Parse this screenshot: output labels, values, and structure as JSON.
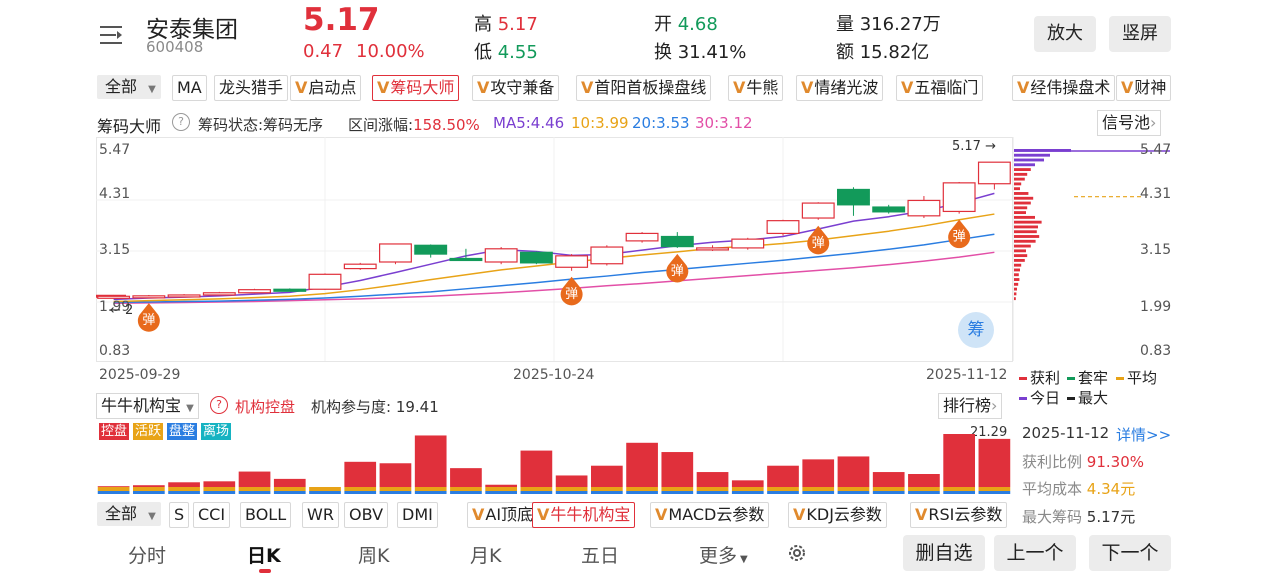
{
  "header": {
    "name": "安泰集团",
    "code": "600408",
    "price": "5.17",
    "change": "0.47",
    "change_pct": "10.00%",
    "high_label": "高",
    "high": "5.17",
    "low_label": "低",
    "low": "4.55",
    "open_label": "开",
    "open": "4.68",
    "turnover_label": "换",
    "turnover": "31.41%",
    "volume_label": "量",
    "volume": "316.27万",
    "amount_label": "额",
    "amount": "15.82亿",
    "zoom_label": "放大",
    "portrait_label": "竖屏"
  },
  "indicator_tabs": {
    "all_label": "全部",
    "items": [
      "MA",
      "龙头猎手",
      "启动点",
      "筹码大师",
      "攻守兼备",
      "首阳首板操盘线",
      "牛熊",
      "情绪光波",
      "五福临门",
      "经伟操盘术",
      "财神"
    ]
  },
  "main_chart": {
    "name": "筹码大师",
    "status": "筹码状态:筹码无序",
    "range": "区间涨幅:",
    "range_val": "158.50%",
    "ma5": "MA5:4.46",
    "ma10": "10:3.99",
    "ma20": "20:3.53",
    "ma30": "30:3.12",
    "signal_pool": "信号池",
    "y_labels": [
      "5.47",
      "4.31",
      "3.15",
      "1.99",
      "0.83"
    ],
    "x_labels": [
      "2025-09-29",
      "2025-10-24",
      "2025-11-12"
    ],
    "current_price_tag": "5.17",
    "min_tag": "2",
    "signal_text": "弹",
    "chip_btn": "筹",
    "colors": {
      "up": "#e0303b",
      "down": "#129a5a",
      "ma5": "#7a3fd0",
      "ma10": "#e8a317",
      "ma20": "#2a7de1",
      "ma30": "#e24fa7"
    }
  },
  "chart_data": {
    "type": "candlestick",
    "ylim": [
      0.83,
      5.47
    ],
    "candles": [
      {
        "o": 2.1,
        "c": 2.12,
        "h": 2.15,
        "l": 2.08
      },
      {
        "o": 2.12,
        "c": 2.13,
        "h": 2.15,
        "l": 2.1
      },
      {
        "o": 2.13,
        "c": 2.15,
        "h": 2.17,
        "l": 2.12
      },
      {
        "o": 2.15,
        "c": 2.2,
        "h": 2.22,
        "l": 2.14
      },
      {
        "o": 2.2,
        "c": 2.27,
        "h": 2.29,
        "l": 2.19
      },
      {
        "o": 2.28,
        "c": 2.27,
        "h": 2.3,
        "l": 2.24
      },
      {
        "o": 2.28,
        "c": 2.62,
        "h": 2.64,
        "l": 2.27
      },
      {
        "o": 2.75,
        "c": 2.85,
        "h": 2.88,
        "l": 2.72
      },
      {
        "o": 2.9,
        "c": 3.31,
        "h": 3.31,
        "l": 2.85
      },
      {
        "o": 3.28,
        "c": 3.08,
        "h": 3.3,
        "l": 3.0
      },
      {
        "o": 2.98,
        "c": 2.94,
        "h": 3.2,
        "l": 2.93
      },
      {
        "o": 2.9,
        "c": 3.2,
        "h": 3.24,
        "l": 2.85
      },
      {
        "o": 3.12,
        "c": 2.88,
        "h": 3.14,
        "l": 2.85
      },
      {
        "o": 2.78,
        "c": 3.04,
        "h": 3.08,
        "l": 2.7
      },
      {
        "o": 2.86,
        "c": 3.24,
        "h": 3.28,
        "l": 2.82
      },
      {
        "o": 3.38,
        "c": 3.55,
        "h": 3.58,
        "l": 3.34
      },
      {
        "o": 3.48,
        "c": 3.25,
        "h": 3.58,
        "l": 3.22
      },
      {
        "o": 3.2,
        "c": 3.22,
        "h": 3.28,
        "l": 3.15
      },
      {
        "o": 3.22,
        "c": 3.42,
        "h": 3.45,
        "l": 3.18
      },
      {
        "o": 3.55,
        "c": 3.84,
        "h": 3.86,
        "l": 3.5
      },
      {
        "o": 3.9,
        "c": 4.24,
        "h": 4.26,
        "l": 3.86
      },
      {
        "o": 4.55,
        "c": 4.2,
        "h": 4.6,
        "l": 3.95
      },
      {
        "o": 4.15,
        "c": 4.04,
        "h": 4.2,
        "l": 4.0
      },
      {
        "o": 3.95,
        "c": 4.3,
        "h": 4.4,
        "l": 3.9
      },
      {
        "o": 4.05,
        "c": 4.7,
        "h": 4.72,
        "l": 4.0
      },
      {
        "o": 4.68,
        "c": 5.17,
        "h": 5.17,
        "l": 4.55
      }
    ],
    "ma5": [
      2.05,
      2.08,
      2.1,
      2.13,
      2.17,
      2.21,
      2.33,
      2.48,
      2.66,
      2.85,
      3.04,
      3.18,
      3.14,
      3.05,
      3.07,
      3.17,
      3.27,
      3.35,
      3.4,
      3.48,
      3.65,
      3.83,
      3.93,
      4.06,
      4.24,
      4.46
    ],
    "ma10": [
      2.0,
      2.02,
      2.04,
      2.06,
      2.09,
      2.12,
      2.18,
      2.27,
      2.38,
      2.5,
      2.61,
      2.72,
      2.81,
      2.9,
      2.98,
      3.06,
      3.13,
      3.21,
      3.26,
      3.32,
      3.4,
      3.5,
      3.6,
      3.72,
      3.86,
      3.99
    ],
    "ma20": [
      1.98,
      1.99,
      2.0,
      2.01,
      2.03,
      2.05,
      2.08,
      2.12,
      2.17,
      2.22,
      2.29,
      2.36,
      2.43,
      2.51,
      2.58,
      2.66,
      2.73,
      2.8,
      2.87,
      2.94,
      3.02,
      3.1,
      3.19,
      3.29,
      3.41,
      3.53
    ],
    "ma30": [
      1.96,
      1.97,
      1.98,
      1.99,
      2.0,
      2.02,
      2.04,
      2.06,
      2.09,
      2.12,
      2.16,
      2.2,
      2.25,
      2.3,
      2.36,
      2.41,
      2.47,
      2.53,
      2.59,
      2.65,
      2.71,
      2.77,
      2.84,
      2.92,
      3.01,
      3.12
    ],
    "signals": [
      1,
      13,
      16,
      20,
      24
    ],
    "inst": [
      0.16,
      0.18,
      0.24,
      0.26,
      0.46,
      0.31,
      0.08,
      0.66,
      0.63,
      1.2,
      0.53,
      0.19,
      0.89,
      0.38,
      0.58,
      1.05,
      0.86,
      0.45,
      0.28,
      0.58,
      0.71,
      0.77,
      0.45,
      0.41,
      1.23,
      1.13
    ]
  },
  "sub_chart": {
    "selector": "牛牛机构宝",
    "name": "机构控盘",
    "participation": "机构参与度: 19.41",
    "rank_label": "排行榜",
    "max_val": "21.29",
    "tags": [
      "控盘",
      "活跃",
      "盘整",
      "离场"
    ],
    "tag_colors": [
      "#e0303b",
      "#e8a317",
      "#2a7de1",
      "#16b3c2"
    ]
  },
  "chip_panel": {
    "legend": [
      "获利",
      "套牢",
      "平均",
      "今日",
      "最大"
    ],
    "legend_colors": [
      "#e0303b",
      "#129a5a",
      "#e8a317",
      "#7a3fd0",
      "#222222"
    ],
    "date": "2025-11-12",
    "detail": "详情>>",
    "profit_label": "获利比例",
    "profit_val": "91.30%",
    "avg_label": "平均成本",
    "avg_val": "4.34元",
    "max_label": "最大筹码",
    "max_val": "5.17元",
    "dist": [
      0.95,
      0.6,
      0.5,
      0.35,
      0.28,
      0.22,
      0.18,
      0.12,
      0.1,
      0.24,
      0.32,
      0.28,
      0.22,
      0.2,
      0.35,
      0.46,
      0.4,
      0.38,
      0.42,
      0.36,
      0.28,
      0.2,
      0.22,
      0.18,
      0.12,
      0.1,
      0.08,
      0.09,
      0.07,
      0.05,
      0.04,
      0.03
    ]
  },
  "bottom_indicators": {
    "all_label": "全部",
    "items": [
      "S",
      "CCI",
      "BOLL",
      "WR",
      "OBV",
      "DMI",
      "AI顶底",
      "牛牛机构宝",
      "MACD云参数",
      "KDJ云参数",
      "RSI云参数"
    ]
  },
  "footer": {
    "tabs": [
      "分时",
      "日K",
      "周K",
      "月K",
      "五日",
      "更多"
    ],
    "delete_label": "删自选",
    "prev_label": "上一个",
    "next_label": "下一个"
  }
}
